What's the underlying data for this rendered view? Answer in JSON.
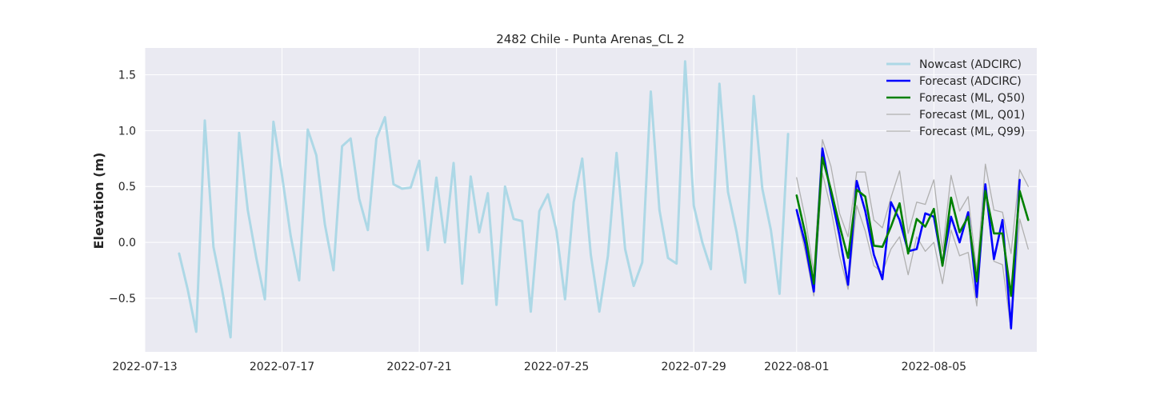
{
  "chart_data": {
    "type": "line",
    "title": "2482 Chile - Punta Arenas_CL 2",
    "xlabel": "",
    "ylabel": "Elevation (m)",
    "x_ticks": [
      "2022-07-13",
      "2022-07-17",
      "2022-07-21",
      "2022-07-25",
      "2022-07-29",
      "2022-08-01",
      "2022-08-05"
    ],
    "y_ticks": [
      "−0.5",
      "0.0",
      "0.5",
      "1.0",
      "1.5"
    ],
    "xlim": [
      "2022-07-13",
      "2022-08-08"
    ],
    "ylim": [
      -0.98,
      1.74
    ],
    "grid": true,
    "legend_position": "top-right",
    "series": [
      {
        "name": "Nowcast (ADCIRC)",
        "color": "#add8e6",
        "width": 3,
        "x": [
          "2022-07-14 00:00",
          "2022-07-14 06:00",
          "2022-07-14 12:00",
          "2022-07-14 18:00",
          "2022-07-15 00:00",
          "2022-07-15 06:00",
          "2022-07-15 12:00",
          "2022-07-15 18:00",
          "2022-07-16 00:00",
          "2022-07-16 06:00",
          "2022-07-16 12:00",
          "2022-07-16 18:00",
          "2022-07-17 00:00",
          "2022-07-17 06:00",
          "2022-07-17 12:00",
          "2022-07-17 18:00",
          "2022-07-18 00:00",
          "2022-07-18 06:00",
          "2022-07-18 12:00",
          "2022-07-18 18:00",
          "2022-07-19 00:00",
          "2022-07-19 06:00",
          "2022-07-19 12:00",
          "2022-07-19 18:00",
          "2022-07-20 00:00",
          "2022-07-20 06:00",
          "2022-07-20 12:00",
          "2022-07-20 18:00",
          "2022-07-21 00:00",
          "2022-07-21 06:00",
          "2022-07-21 12:00",
          "2022-07-21 18:00",
          "2022-07-22 00:00",
          "2022-07-22 06:00",
          "2022-07-22 12:00",
          "2022-07-22 18:00",
          "2022-07-23 00:00",
          "2022-07-23 06:00",
          "2022-07-23 12:00",
          "2022-07-23 18:00",
          "2022-07-24 00:00",
          "2022-07-24 06:00",
          "2022-07-24 12:00",
          "2022-07-24 18:00",
          "2022-07-25 00:00",
          "2022-07-25 06:00",
          "2022-07-25 12:00",
          "2022-07-25 18:00",
          "2022-07-26 00:00",
          "2022-07-26 06:00",
          "2022-07-26 12:00",
          "2022-07-26 18:00",
          "2022-07-27 00:00",
          "2022-07-27 06:00",
          "2022-07-27 12:00",
          "2022-07-27 18:00",
          "2022-07-28 00:00",
          "2022-07-28 06:00",
          "2022-07-28 12:00",
          "2022-07-28 18:00",
          "2022-07-29 00:00",
          "2022-07-29 06:00",
          "2022-07-29 12:00",
          "2022-07-29 18:00",
          "2022-07-30 00:00",
          "2022-07-30 06:00",
          "2022-07-30 12:00",
          "2022-07-30 18:00",
          "2022-07-31 00:00",
          "2022-07-31 06:00",
          "2022-07-31 12:00",
          "2022-07-31 18:00"
        ],
        "y": [
          -0.1,
          -0.42,
          -0.8,
          1.09,
          -0.04,
          -0.42,
          -0.85,
          0.98,
          0.29,
          -0.14,
          -0.51,
          1.08,
          0.6,
          0.06,
          -0.34,
          1.01,
          0.78,
          0.16,
          -0.25,
          0.86,
          0.93,
          0.39,
          0.11,
          0.93,
          1.12,
          0.52,
          0.48,
          0.49,
          0.73,
          -0.07,
          0.58,
          0.0,
          0.71,
          -0.37,
          0.59,
          0.09,
          0.44,
          -0.56,
          0.5,
          0.21,
          0.19,
          -0.62,
          0.28,
          0.43,
          0.1,
          -0.51,
          0.36,
          0.75,
          -0.11,
          -0.62,
          -0.12,
          0.8,
          -0.06,
          -0.39,
          -0.18,
          1.35,
          0.29,
          -0.14,
          -0.19,
          1.62,
          0.33,
          0.0,
          -0.24,
          1.42,
          0.45,
          0.09,
          -0.36,
          1.31,
          0.48,
          0.11,
          -0.46,
          0.97
        ]
      },
      {
        "name": "Forecast (ML, Q01)",
        "color": "#b0b0b0",
        "width": 1.3,
        "x": [
          "2022-08-01 00:00",
          "2022-08-01 06:00",
          "2022-08-01 12:00",
          "2022-08-01 18:00",
          "2022-08-02 00:00",
          "2022-08-02 06:00",
          "2022-08-02 12:00",
          "2022-08-02 18:00",
          "2022-08-03 00:00",
          "2022-08-03 06:00",
          "2022-08-03 12:00",
          "2022-08-03 18:00",
          "2022-08-04 00:00",
          "2022-08-04 06:00",
          "2022-08-04 12:00",
          "2022-08-04 18:00",
          "2022-08-05 00:00",
          "2022-08-05 06:00",
          "2022-08-05 12:00",
          "2022-08-05 18:00",
          "2022-08-06 00:00",
          "2022-08-06 06:00",
          "2022-08-06 12:00",
          "2022-08-06 18:00",
          "2022-08-07 00:00",
          "2022-08-07 06:00",
          "2022-08-07 12:00",
          "2022-08-07 18:00"
        ],
        "y": [
          0.26,
          -0.08,
          -0.48,
          0.62,
          0.3,
          -0.12,
          -0.42,
          0.33,
          0.1,
          -0.21,
          -0.27,
          -0.06,
          0.05,
          -0.29,
          0.05,
          -0.08,
          0.0,
          -0.37,
          0.11,
          -0.12,
          -0.09,
          -0.57,
          0.46,
          -0.17,
          -0.2,
          -0.78,
          0.21,
          -0.06
        ]
      },
      {
        "name": "Forecast (ML, Q99)",
        "color": "#b0b0b0",
        "width": 1.3,
        "x": [
          "2022-08-01 00:00",
          "2022-08-01 06:00",
          "2022-08-01 12:00",
          "2022-08-01 18:00",
          "2022-08-02 00:00",
          "2022-08-02 06:00",
          "2022-08-02 12:00",
          "2022-08-02 18:00",
          "2022-08-03 00:00",
          "2022-08-03 06:00",
          "2022-08-03 12:00",
          "2022-08-03 18:00",
          "2022-08-04 00:00",
          "2022-08-04 06:00",
          "2022-08-04 12:00",
          "2022-08-04 18:00",
          "2022-08-05 00:00",
          "2022-08-05 06:00",
          "2022-08-05 12:00",
          "2022-08-05 18:00",
          "2022-08-06 00:00",
          "2022-08-06 06:00",
          "2022-08-06 12:00",
          "2022-08-06 18:00",
          "2022-08-07 00:00",
          "2022-08-07 06:00",
          "2022-08-07 12:00",
          "2022-08-07 18:00"
        ],
        "y": [
          0.58,
          0.22,
          -0.27,
          0.92,
          0.68,
          0.26,
          0.05,
          0.63,
          0.63,
          0.2,
          0.13,
          0.4,
          0.64,
          0.08,
          0.36,
          0.34,
          0.56,
          -0.08,
          0.6,
          0.28,
          0.41,
          -0.27,
          0.7,
          0.29,
          0.27,
          -0.1,
          0.65,
          0.5
        ]
      },
      {
        "name": "Forecast (ADCIRC)",
        "color": "#0000ff",
        "width": 2.6,
        "x": [
          "2022-08-01 00:00",
          "2022-08-01 06:00",
          "2022-08-01 12:00",
          "2022-08-01 18:00",
          "2022-08-02 00:00",
          "2022-08-02 06:00",
          "2022-08-02 12:00",
          "2022-08-02 18:00",
          "2022-08-03 00:00",
          "2022-08-03 06:00",
          "2022-08-03 12:00",
          "2022-08-03 18:00",
          "2022-08-04 00:00",
          "2022-08-04 06:00",
          "2022-08-04 12:00",
          "2022-08-04 18:00",
          "2022-08-05 00:00",
          "2022-08-05 06:00",
          "2022-08-05 12:00",
          "2022-08-05 18:00",
          "2022-08-06 00:00",
          "2022-08-06 06:00",
          "2022-08-06 12:00",
          "2022-08-06 18:00",
          "2022-08-07 00:00",
          "2022-08-07 06:00",
          "2022-08-07 12:00",
          "2022-08-07 18:00"
        ],
        "y": [
          0.29,
          -0.01,
          -0.44,
          0.84,
          0.43,
          0.06,
          -0.38,
          0.55,
          0.28,
          -0.11,
          -0.33,
          0.36,
          0.2,
          -0.08,
          -0.06,
          0.26,
          0.23,
          -0.2,
          0.23,
          0.0,
          0.27,
          -0.49,
          0.52,
          -0.15,
          0.2,
          -0.77,
          0.56,
          null
        ]
      },
      {
        "name": "Forecast (ML, Q50)",
        "color": "#008000",
        "width": 2.6,
        "x": [
          "2022-08-01 00:00",
          "2022-08-01 06:00",
          "2022-08-01 12:00",
          "2022-08-01 18:00",
          "2022-08-02 00:00",
          "2022-08-02 06:00",
          "2022-08-02 12:00",
          "2022-08-02 18:00",
          "2022-08-03 00:00",
          "2022-08-03 06:00",
          "2022-08-03 12:00",
          "2022-08-03 18:00",
          "2022-08-04 00:00",
          "2022-08-04 06:00",
          "2022-08-04 12:00",
          "2022-08-04 18:00",
          "2022-08-05 00:00",
          "2022-08-05 06:00",
          "2022-08-05 12:00",
          "2022-08-05 18:00",
          "2022-08-06 00:00",
          "2022-08-06 06:00",
          "2022-08-06 12:00",
          "2022-08-06 18:00",
          "2022-08-07 00:00",
          "2022-08-07 06:00",
          "2022-08-07 12:00",
          "2022-08-07 18:00"
        ],
        "y": [
          0.42,
          0.08,
          -0.37,
          0.76,
          0.47,
          0.15,
          -0.14,
          0.47,
          0.41,
          -0.03,
          -0.04,
          0.14,
          0.35,
          -0.1,
          0.21,
          0.14,
          0.3,
          -0.21,
          0.4,
          0.09,
          0.23,
          -0.35,
          0.46,
          0.08,
          0.08,
          -0.48,
          0.46,
          0.2
        ]
      }
    ],
    "legend": [
      {
        "label": "Nowcast (ADCIRC)",
        "color": "#add8e6",
        "width": 3
      },
      {
        "label": "Forecast (ADCIRC)",
        "color": "#0000ff",
        "width": 2.6
      },
      {
        "label": "Forecast (ML, Q50)",
        "color": "#008000",
        "width": 2.6
      },
      {
        "label": "Forecast (ML, Q01)",
        "color": "#b0b0b0",
        "width": 1.3
      },
      {
        "label": "Forecast (ML, Q99)",
        "color": "#b0b0b0",
        "width": 1.3
      }
    ]
  },
  "colors": {
    "axes_background": "#eaeaf2",
    "grid": "#ffffff"
  }
}
